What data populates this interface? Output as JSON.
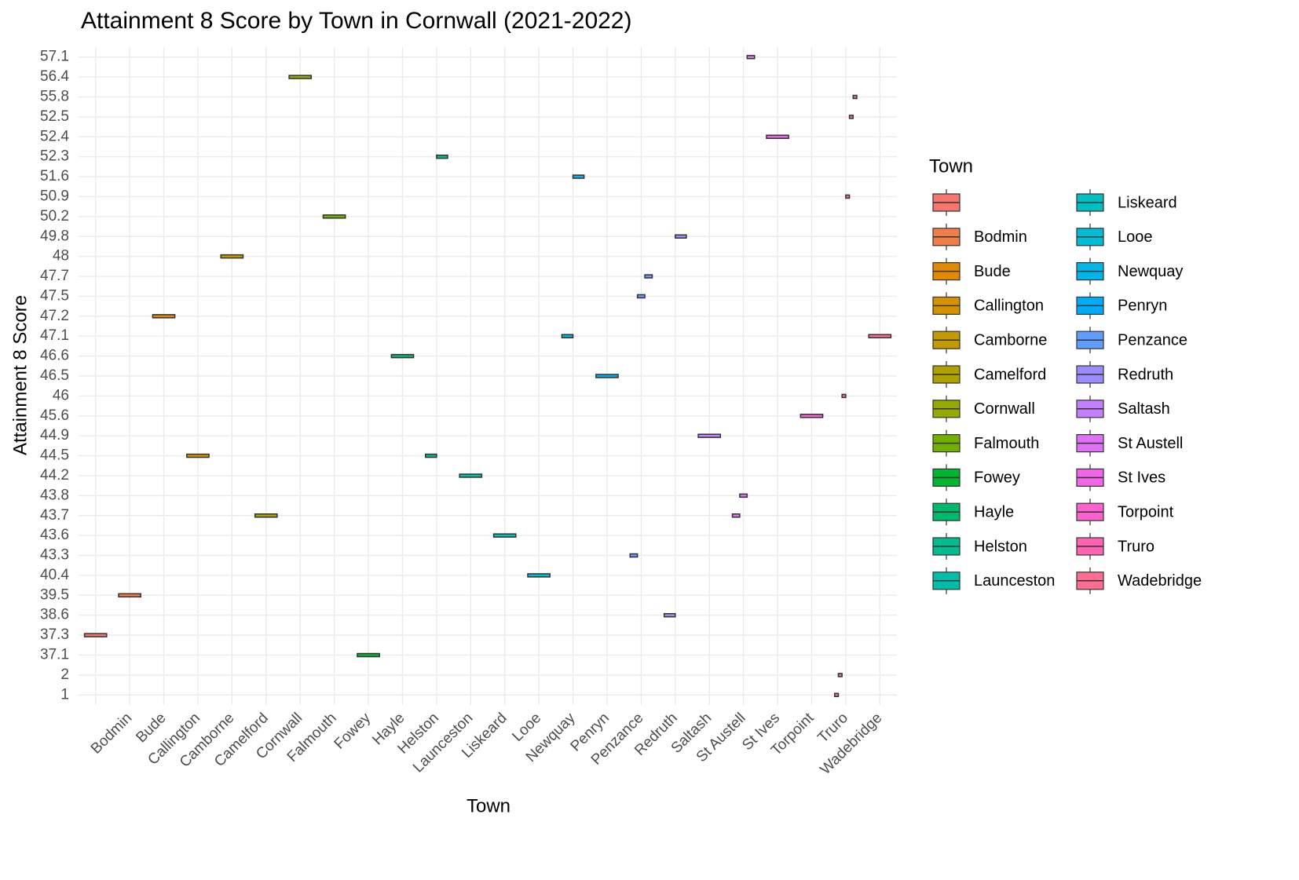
{
  "chart_data": {
    "type": "boxplot",
    "title": "Attainment 8 Score by Town in Cornwall (2021-2022)",
    "x_label": "Town",
    "y_label": "Attainment 8 Score",
    "categories": [
      null,
      "Bodmin",
      "Bude",
      "Callington",
      "Camborne",
      "Camelford",
      "Cornwall",
      "Falmouth",
      "Fowey",
      "Hayle",
      "Helston",
      "Launceston",
      "Liskeard",
      "Looe",
      "Newquay",
      "Penryn",
      "Penzance",
      "Redruth",
      "Saltash",
      "St Austell",
      "St Ives",
      "Torpoint",
      "Truro",
      "Wadebridge"
    ],
    "yticks": [
      1,
      2,
      37.1,
      37.3,
      38.6,
      39.5,
      40.4,
      43.3,
      43.6,
      43.7,
      43.8,
      44.2,
      44.5,
      44.9,
      45.6,
      46,
      46.5,
      46.6,
      47.1,
      47.2,
      47.5,
      47.7,
      48,
      49.8,
      50.2,
      50.9,
      51.6,
      52.3,
      52.4,
      52.5,
      55.8,
      56.4,
      57.1
    ],
    "legend_title": "Town",
    "grid": true,
    "series": [
      {
        "name": null,
        "color": "#F8766D",
        "values": [
          37.3
        ]
      },
      {
        "name": "Bodmin",
        "color": "#EF7F49",
        "values": [
          39.5
        ]
      },
      {
        "name": "Bude",
        "color": "#E38900",
        "values": [
          47.2
        ]
      },
      {
        "name": "Callington",
        "color": "#D59100",
        "values": [
          44.5
        ]
      },
      {
        "name": "Camborne",
        "color": "#C49A00",
        "values": [
          48
        ]
      },
      {
        "name": "Camelford",
        "color": "#AFA100",
        "values": [
          43.7
        ]
      },
      {
        "name": "Cornwall",
        "color": "#96A900",
        "values": [
          56.4
        ]
      },
      {
        "name": "Falmouth",
        "color": "#72B000",
        "values": [
          50.2
        ]
      },
      {
        "name": "Fowey",
        "color": "#00B52F",
        "values": [
          37.1
        ]
      },
      {
        "name": "Hayle",
        "color": "#00B96A",
        "values": [
          46.6
        ]
      },
      {
        "name": "Helston",
        "color": "#00BC8E",
        "values": [
          44.5,
          52.3
        ]
      },
      {
        "name": "Launceston",
        "color": "#00BFA8",
        "values": [
          44.2
        ]
      },
      {
        "name": "Liskeard",
        "color": "#00BFC0",
        "values": [
          43.6
        ]
      },
      {
        "name": "Looe",
        "color": "#00BCD5",
        "values": [
          40.4
        ]
      },
      {
        "name": "Newquay",
        "color": "#00B6E8",
        "values": [
          47.1,
          51.6
        ]
      },
      {
        "name": "Penryn",
        "color": "#00ACF8",
        "values": [
          46.5
        ]
      },
      {
        "name": "Penzance",
        "color": "#619CFF",
        "values": [
          43.3,
          47.5,
          47.7
        ]
      },
      {
        "name": "Redruth",
        "color": "#9B8DFF",
        "values": [
          38.6,
          49.8
        ]
      },
      {
        "name": "Saltash",
        "color": "#C27FFF",
        "values": [
          44.9
        ]
      },
      {
        "name": "St Austell",
        "color": "#DE71F5",
        "values": [
          43.7,
          43.8,
          57.1
        ]
      },
      {
        "name": "St Ives",
        "color": "#F166E6",
        "values": [
          52.4
        ]
      },
      {
        "name": "Torpoint",
        "color": "#FD61CF",
        "values": [
          45.6
        ]
      },
      {
        "name": "Truro",
        "color": "#FF63B3",
        "values": [
          1,
          2,
          46,
          50.9,
          52.5,
          55.8
        ]
      },
      {
        "name": "Wadebridge",
        "color": "#FF6C91",
        "values": [
          47.1
        ]
      }
    ]
  }
}
